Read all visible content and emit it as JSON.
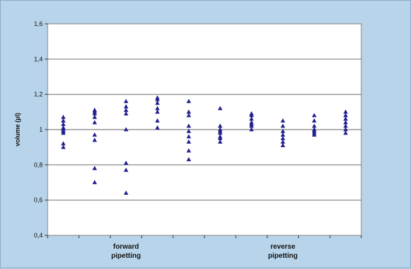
{
  "chart_data": {
    "type": "scatter",
    "title": "",
    "ylabel": "volume (µl)",
    "xlabel": "",
    "ylim": [
      0.4,
      1.6
    ],
    "yticks": [
      {
        "value": 0.4,
        "label": "0,4"
      },
      {
        "value": 0.6,
        "label": "0,6"
      },
      {
        "value": 0.8,
        "label": "0,8"
      },
      {
        "value": 1.0,
        "label": "1"
      },
      {
        "value": 1.2,
        "label": "1,2"
      },
      {
        "value": 1.4,
        "label": "1,4"
      },
      {
        "value": 1.6,
        "label": "1,6"
      }
    ],
    "grid": true,
    "legend": "none",
    "marker": "triangle",
    "marker_color": "#1f1f8f",
    "plot_background": "#ffffff",
    "chart_background": "#b8d4ea",
    "gridline_color": "#808080",
    "x_positions": 10,
    "category_labels": [
      {
        "text": "forward pipetting",
        "line1": "forward",
        "line2": "pipetting",
        "center_x": 3
      },
      {
        "text": "reverse pipetting",
        "line1": "reverse",
        "line2": "pipetting",
        "center_x": 8
      }
    ],
    "series": [
      {
        "group": "forward pipetting",
        "x": 1,
        "values": [
          1.07,
          1.05,
          1.03,
          1.01,
          1.0,
          0.99,
          0.98,
          0.92,
          0.9
        ]
      },
      {
        "group": "forward pipetting",
        "x": 2,
        "values": [
          1.11,
          1.1,
          1.09,
          1.07,
          1.04,
          0.97,
          0.94,
          0.78,
          0.7
        ]
      },
      {
        "group": "forward pipetting",
        "x": 3,
        "values": [
          1.16,
          1.13,
          1.11,
          1.09,
          1.0,
          0.81,
          0.77,
          0.64
        ]
      },
      {
        "group": "forward pipetting",
        "x": 4,
        "values": [
          1.18,
          1.17,
          1.15,
          1.12,
          1.1,
          1.05,
          1.01
        ]
      },
      {
        "group": "forward pipetting",
        "x": 5,
        "values": [
          1.16,
          1.1,
          1.08,
          1.02,
          0.99,
          0.96,
          0.93,
          0.88,
          0.83
        ]
      },
      {
        "group": "reverse pipetting",
        "x": 6,
        "values": [
          1.12,
          1.02,
          1.0,
          0.99,
          0.98,
          0.96,
          0.95,
          0.93
        ]
      },
      {
        "group": "reverse pipetting",
        "x": 7,
        "values": [
          1.09,
          1.08,
          1.06,
          1.04,
          1.03,
          1.02,
          1.0
        ]
      },
      {
        "group": "reverse pipetting",
        "x": 8,
        "values": [
          1.05,
          1.02,
          0.99,
          0.97,
          0.95,
          0.93,
          0.91
        ]
      },
      {
        "group": "reverse pipetting",
        "x": 9,
        "values": [
          1.08,
          1.05,
          1.02,
          1.0,
          0.99,
          0.98,
          0.97
        ]
      },
      {
        "group": "reverse pipetting",
        "x": 10,
        "values": [
          1.1,
          1.08,
          1.06,
          1.04,
          1.02,
          1.0,
          0.98
        ]
      }
    ]
  }
}
